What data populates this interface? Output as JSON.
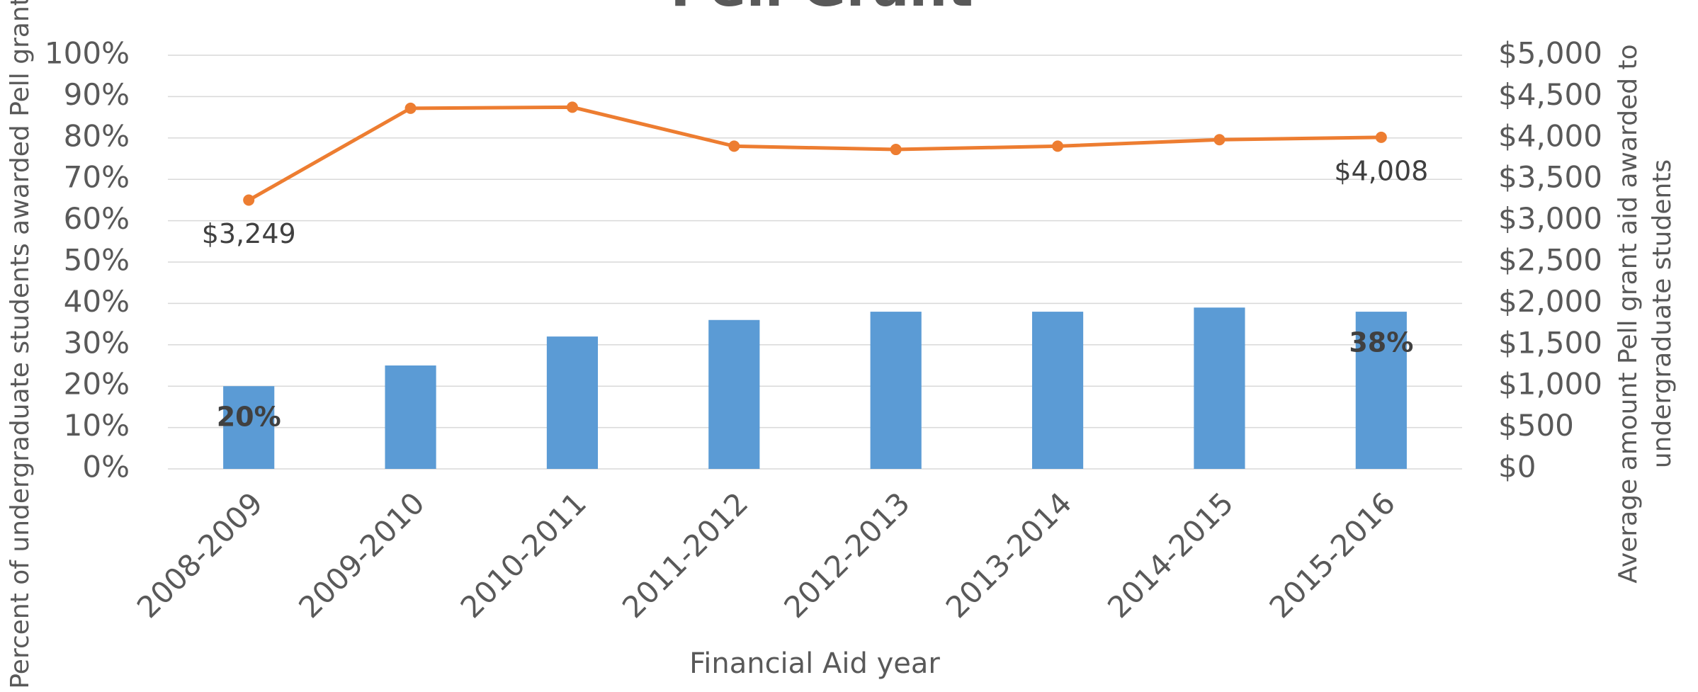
{
  "chart_data": {
    "type": "bar",
    "title": "Pell Grant",
    "xlabel": "Financial Aid year",
    "ylabel": "Percent of undergraduate students awarded Pell grants",
    "y2label": [
      "Average amount Pell grant aid awarded to",
      "undergraduate students"
    ],
    "categories": [
      "2008-2009",
      "2009-2010",
      "2010-2011",
      "2011-2012",
      "2012-2013",
      "2013-2014",
      "2014-2015",
      "2015-2016"
    ],
    "series": [
      {
        "type": "bar",
        "color": "#5b9bd5",
        "values": [
          20,
          25,
          32,
          36,
          38,
          38,
          39,
          38
        ],
        "value_labels": [
          "20%",
          null,
          null,
          null,
          null,
          null,
          null,
          "38%"
        ]
      },
      {
        "type": "line",
        "axis": "y2",
        "color": "#ed7d31",
        "values": [
          3249,
          4359,
          4372,
          3901,
          3861,
          3901,
          3979,
          4008
        ],
        "value_labels": [
          "$3,249",
          null,
          null,
          null,
          null,
          null,
          null,
          "$4,008"
        ]
      }
    ],
    "ylim": [
      0,
      100
    ],
    "yticks": [
      {
        "value": 0,
        "label": "0%"
      },
      {
        "value": 10,
        "label": "10%"
      },
      {
        "value": 20,
        "label": "20%"
      },
      {
        "value": 30,
        "label": "30%"
      },
      {
        "value": 40,
        "label": "40%"
      },
      {
        "value": 50,
        "label": "50%"
      },
      {
        "value": 60,
        "label": "60%"
      },
      {
        "value": 70,
        "label": "70%"
      },
      {
        "value": 80,
        "label": "80%"
      },
      {
        "value": 90,
        "label": "90%"
      },
      {
        "value": 100,
        "label": "100%"
      }
    ],
    "y2lim": [
      0,
      5000
    ],
    "y2ticks": [
      {
        "value": 0,
        "label": "$0"
      },
      {
        "value": 500,
        "label": "$500"
      },
      {
        "value": 1000,
        "label": "$1,000"
      },
      {
        "value": 1500,
        "label": "$1,500"
      },
      {
        "value": 2000,
        "label": "$2,000"
      },
      {
        "value": 2500,
        "label": "$2,500"
      },
      {
        "value": 3000,
        "label": "$3,000"
      },
      {
        "value": 3500,
        "label": "$3,500"
      },
      {
        "value": 4000,
        "label": "$4,000"
      },
      {
        "value": 4500,
        "label": "$4,500"
      },
      {
        "value": 5000,
        "label": "$5,000"
      }
    ],
    "grid": true
  }
}
